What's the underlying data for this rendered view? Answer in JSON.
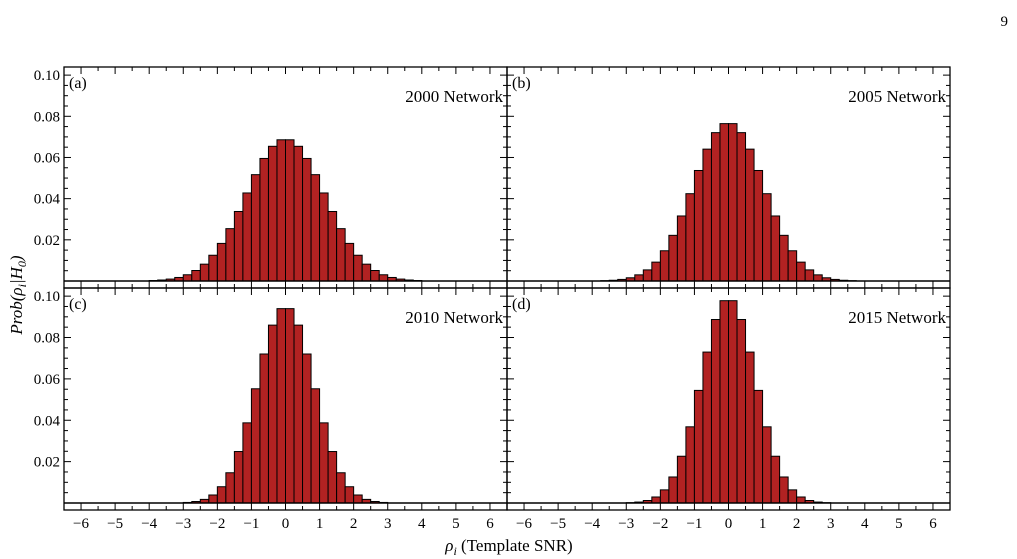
{
  "page_number": "9",
  "figure": {
    "ylabel_prefix": "Prob(",
    "ylabel_rho": "ρ",
    "ylabel_rho_sub": "i",
    "ylabel_bar": "|",
    "ylabel_H": "H",
    "ylabel_H_sub": "0",
    "ylabel_suffix": ")",
    "xlabel_rho": "ρ",
    "xlabel_sub": "i",
    "xlabel_text": " (Template SNR)",
    "bar_color": "#b22222",
    "edge_color": "#000000"
  },
  "chart_data": [
    {
      "type": "bar",
      "panel_label": "(a)",
      "title": "2000 Network",
      "xlim": [
        -6.5,
        6.5
      ],
      "ylim": [
        0,
        0.102
      ],
      "x_ticks": [
        -6,
        -5,
        -4,
        -3,
        -2,
        -1,
        0,
        1,
        2,
        3,
        4,
        5,
        6
      ],
      "y_ticks": [
        0.02,
        0.04,
        0.06,
        0.08,
        0.1
      ],
      "y_tick_labels": [
        "0.02",
        "0.04",
        "0.06",
        "0.08",
        "0.10"
      ],
      "show_x_tick_labels": false,
      "bin_width": 0.25,
      "sigma": 1.15,
      "peak": 0.069
    },
    {
      "type": "bar",
      "panel_label": "(b)",
      "title": "2005 Network",
      "xlim": [
        -6.5,
        6.5
      ],
      "ylim": [
        0,
        0.102
      ],
      "x_ticks": [
        -6,
        -5,
        -4,
        -3,
        -2,
        -1,
        0,
        1,
        2,
        3,
        4,
        5,
        6
      ],
      "y_ticks": [
        0.02,
        0.04,
        0.06,
        0.08,
        0.1
      ],
      "y_tick_labels": [],
      "show_x_tick_labels": false,
      "bin_width": 0.25,
      "sigma": 1.03,
      "peak": 0.077
    },
    {
      "type": "bar",
      "panel_label": "(c)",
      "title": "2010 Network",
      "xlim": [
        -6.5,
        6.5
      ],
      "ylim": [
        0,
        0.102
      ],
      "x_ticks": [
        -6,
        -5,
        -4,
        -3,
        -2,
        -1,
        0,
        1,
        2,
        3,
        4,
        5,
        6
      ],
      "y_ticks": [
        0.02,
        0.04,
        0.06,
        0.08,
        0.1
      ],
      "y_tick_labels": [
        "0.02",
        "0.04",
        "0.06",
        "0.08",
        "0.10"
      ],
      "show_x_tick_labels": true,
      "x_tick_labels": [
        "−6",
        "−5",
        "−4",
        "−3",
        "−2",
        "−1",
        "0",
        "1",
        "2",
        "3",
        "4",
        "5",
        "6"
      ],
      "bin_width": 0.25,
      "sigma": 0.84,
      "peak": 0.095
    },
    {
      "type": "bar",
      "panel_label": "(d)",
      "title": "2015 Network",
      "xlim": [
        -6.5,
        6.5
      ],
      "ylim": [
        0,
        0.102
      ],
      "x_ticks": [
        -6,
        -5,
        -4,
        -3,
        -2,
        -1,
        0,
        1,
        2,
        3,
        4,
        5,
        6
      ],
      "y_ticks": [
        0.02,
        0.04,
        0.06,
        0.08,
        0.1
      ],
      "y_tick_labels": [],
      "show_x_tick_labels": true,
      "x_tick_labels": [
        "−6",
        "−5",
        "−4",
        "−3",
        "−2",
        "−1",
        "0",
        "1",
        "2",
        "3",
        "4",
        "5",
        "6"
      ],
      "bin_width": 0.25,
      "sigma": 0.8,
      "peak": 0.099
    }
  ]
}
